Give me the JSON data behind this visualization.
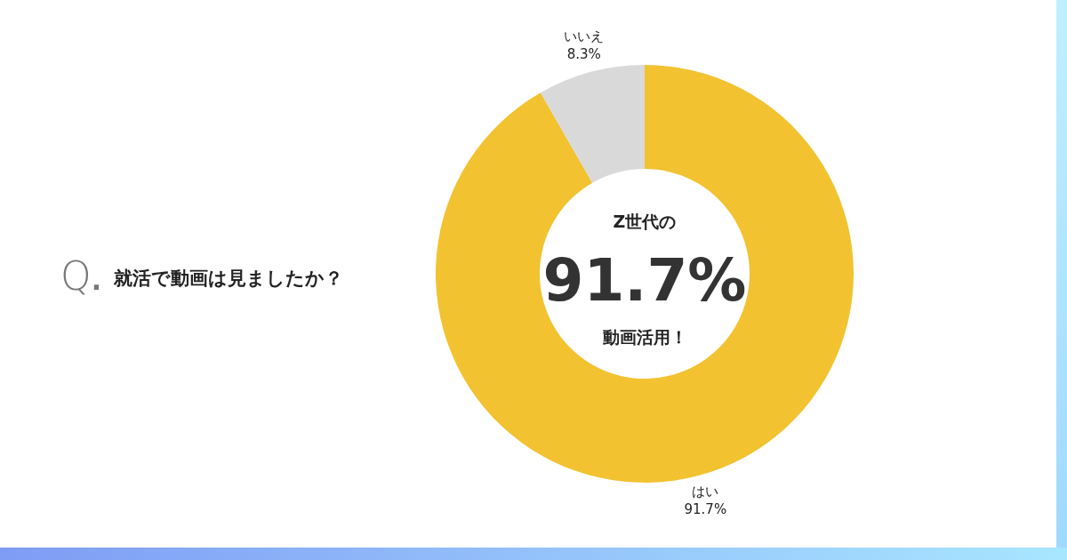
{
  "chart_data": {
    "type": "donut",
    "title": "就活で動画は見ましたか？",
    "categories": [
      "はい",
      "いいえ"
    ],
    "values": [
      91.7,
      8.3
    ],
    "colors": [
      "#f2c230",
      "#d9d9d9"
    ],
    "value_labels": [
      "91.7%",
      "8.3%"
    ],
    "annotations": [
      "Q.",
      "Z世代の",
      "91.7%",
      "動画活用！"
    ]
  }
}
